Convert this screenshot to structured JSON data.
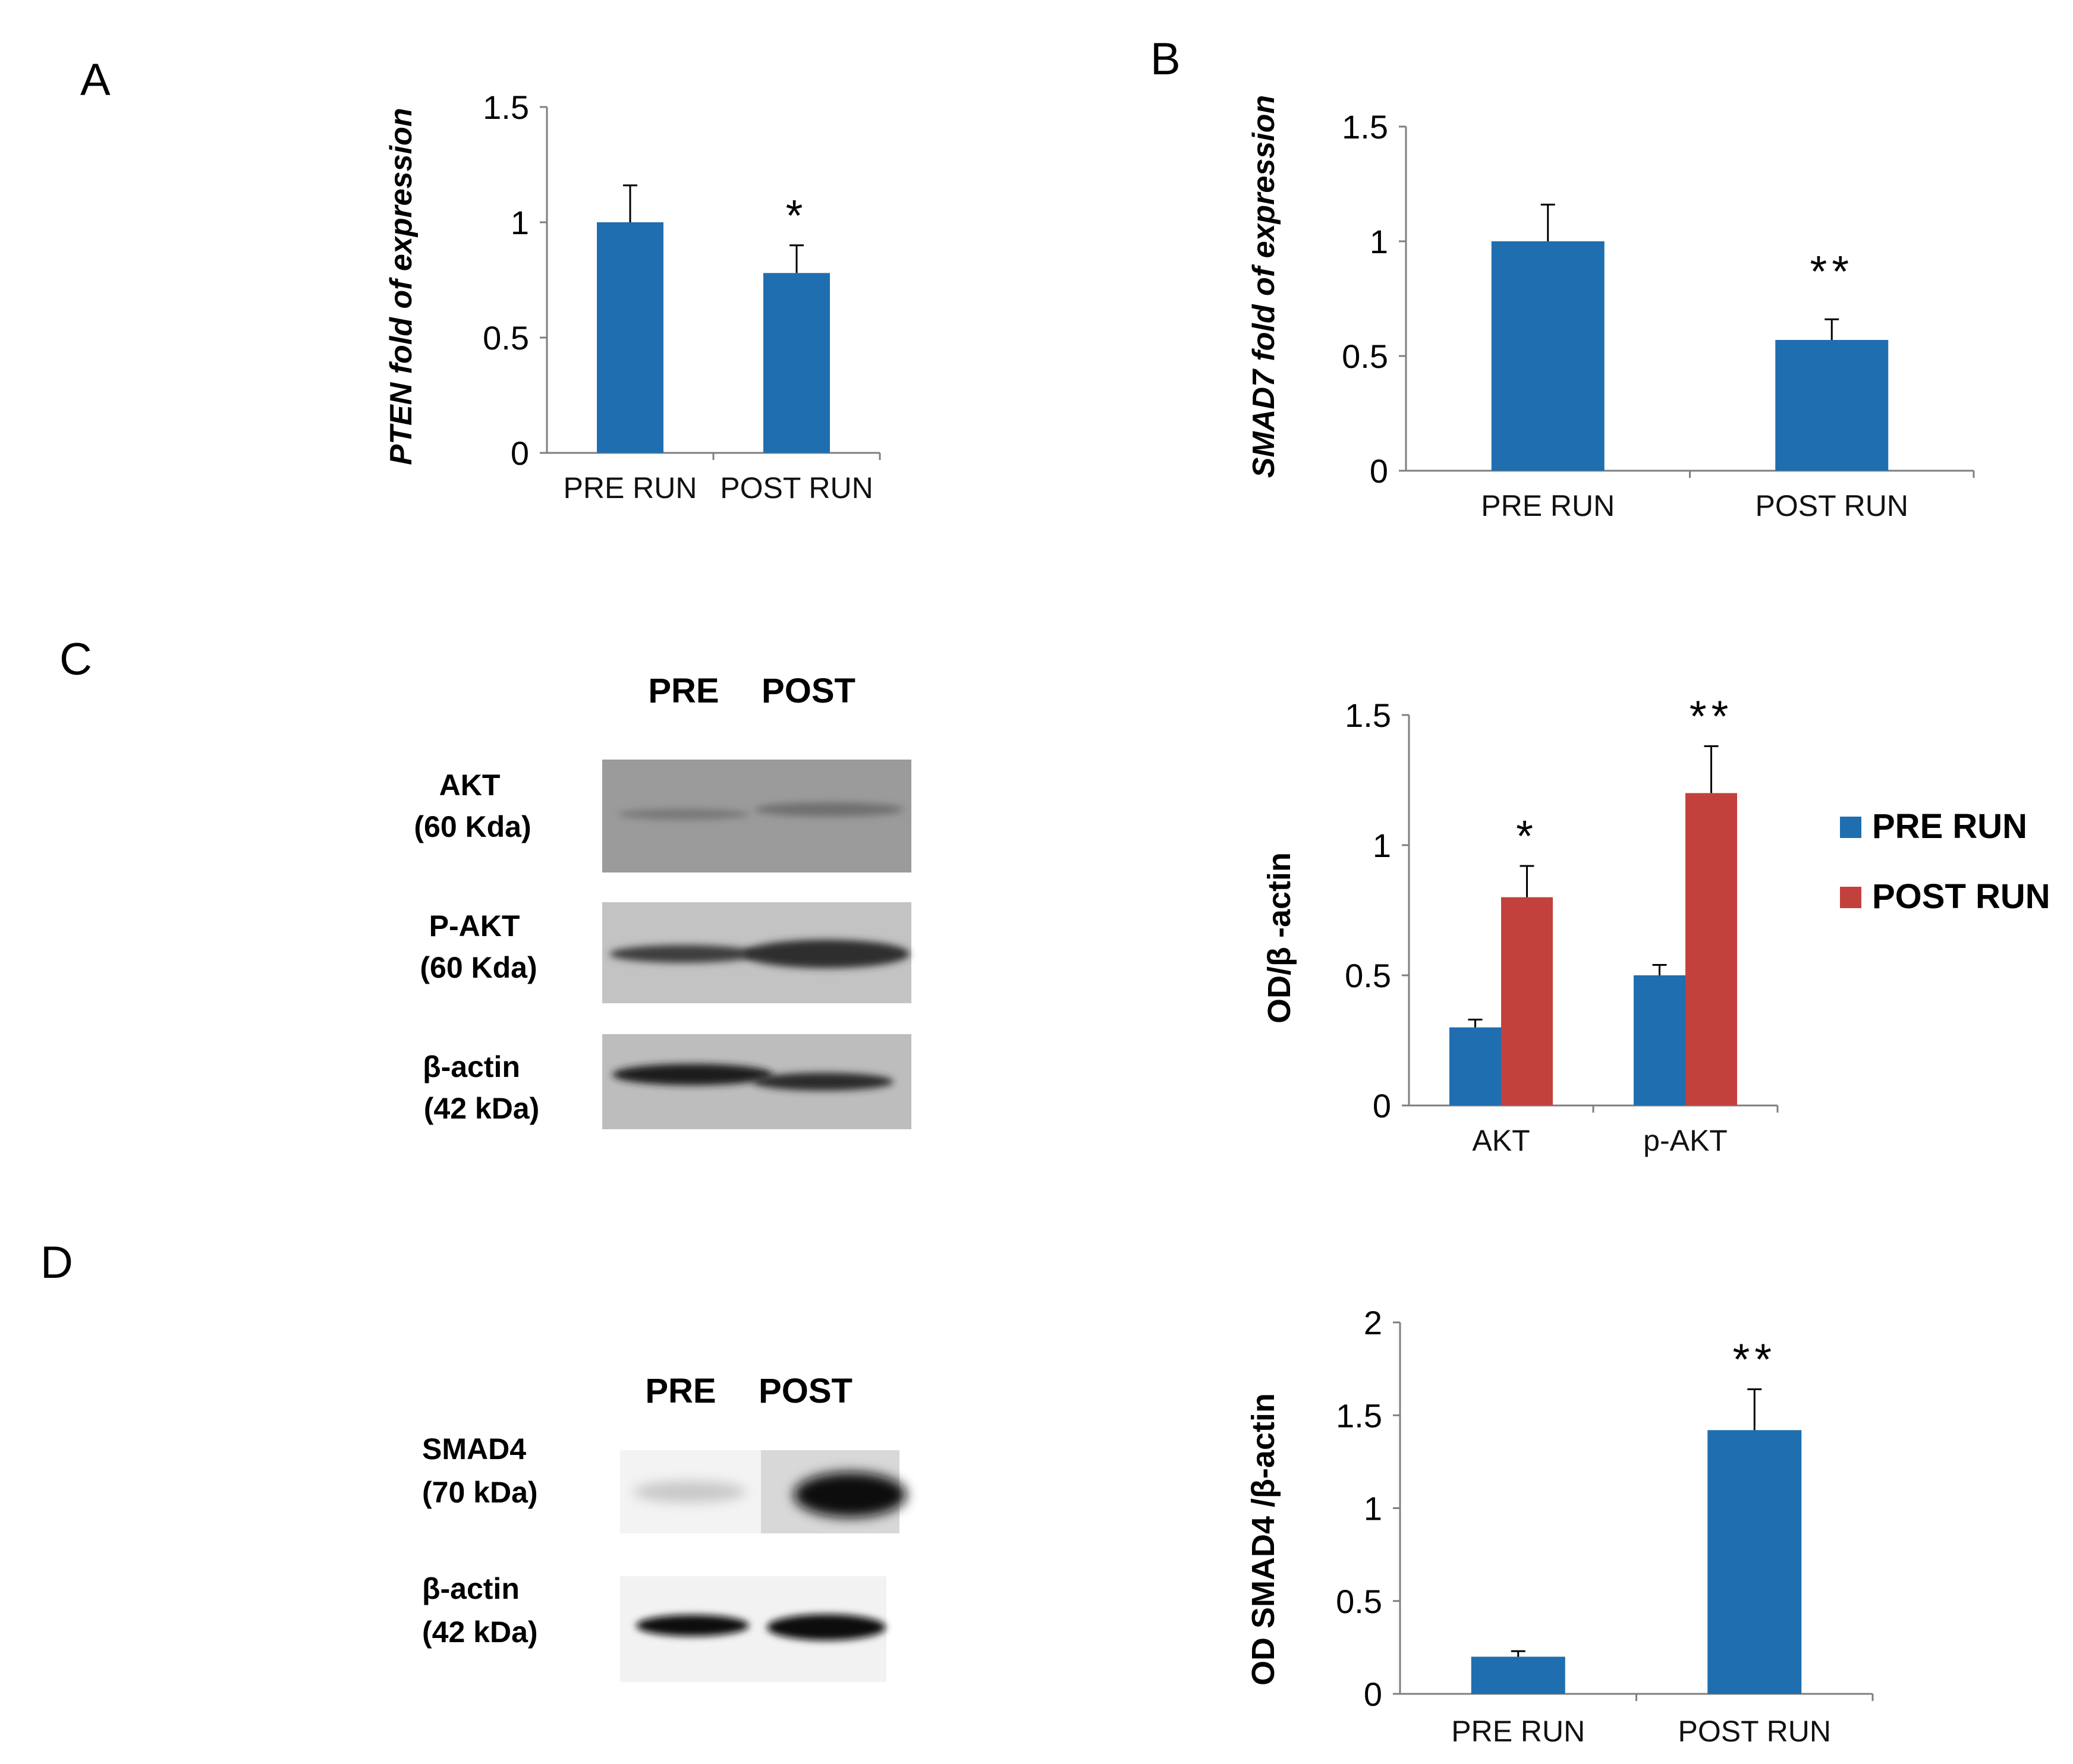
{
  "colors": {
    "blue": "#1f6eb0",
    "red": "#c2413c"
  },
  "panels": {
    "A": {
      "letter": "A",
      "chart_data": {
        "type": "bar",
        "categories": [
          "PRE RUN",
          "POST RUN"
        ],
        "values": [
          1.0,
          0.78
        ],
        "errors": [
          0.16,
          0.12
        ],
        "significance": [
          "",
          "*"
        ],
        "ylabel": "PTEN fold of expression",
        "ylim": [
          0,
          1.5
        ],
        "yticks": [
          "0",
          "0.5",
          "1",
          "1.5"
        ],
        "grid": false
      }
    },
    "B": {
      "letter": "B",
      "chart_data": {
        "type": "bar",
        "categories": [
          "PRE RUN",
          "POST RUN"
        ],
        "values": [
          1.0,
          0.57
        ],
        "errors": [
          0.16,
          0.09
        ],
        "significance": [
          "",
          "**"
        ],
        "ylabel": "SMAD7 fold of expression",
        "ylim": [
          0,
          1.5
        ],
        "yticks": [
          "0",
          "0.5",
          "1",
          "1.5"
        ],
        "grid": false
      }
    },
    "C": {
      "letter": "C",
      "blot": {
        "lane_labels": [
          "PRE",
          "POST"
        ],
        "rows": [
          {
            "name": "AKT",
            "size": "(60 Kda)"
          },
          {
            "name": "P-AKT",
            "size": "(60 Kda)"
          },
          {
            "name": "β-actin",
            "size": "(42 kDa)"
          }
        ]
      },
      "chart_data": {
        "type": "bar",
        "categories": [
          "AKT",
          "p-AKT"
        ],
        "series": [
          {
            "name": "PRE RUN",
            "values": [
              0.3,
              0.5
            ],
            "errors": [
              0.03,
              0.04
            ]
          },
          {
            "name": "POST RUN",
            "values": [
              0.8,
              1.2
            ],
            "errors": [
              0.12,
              0.18
            ]
          }
        ],
        "significance": [
          "*",
          "**"
        ],
        "ylabel": "OD/β -actin",
        "ylim": [
          0,
          1.5
        ],
        "yticks": [
          "0",
          "0.5",
          "1",
          "1.5"
        ],
        "legend": "right",
        "grid": false
      }
    },
    "D": {
      "letter": "D",
      "blot": {
        "lane_labels": [
          "PRE",
          "POST"
        ],
        "rows": [
          {
            "name": "SMAD4",
            "size": "(70 kDa)"
          },
          {
            "name": "β-actin",
            "size": "(42 kDa)"
          }
        ]
      },
      "chart_data": {
        "type": "bar",
        "categories": [
          "PRE RUN",
          "POST RUN"
        ],
        "values": [
          0.2,
          1.42
        ],
        "errors": [
          0.03,
          0.22
        ],
        "significance": [
          "",
          "**"
        ],
        "ylabel": "OD SMAD4 /β-actin",
        "ylim": [
          0,
          2
        ],
        "yticks": [
          "0",
          "0.5",
          "1",
          "1.5",
          "2"
        ],
        "grid": false
      }
    }
  }
}
